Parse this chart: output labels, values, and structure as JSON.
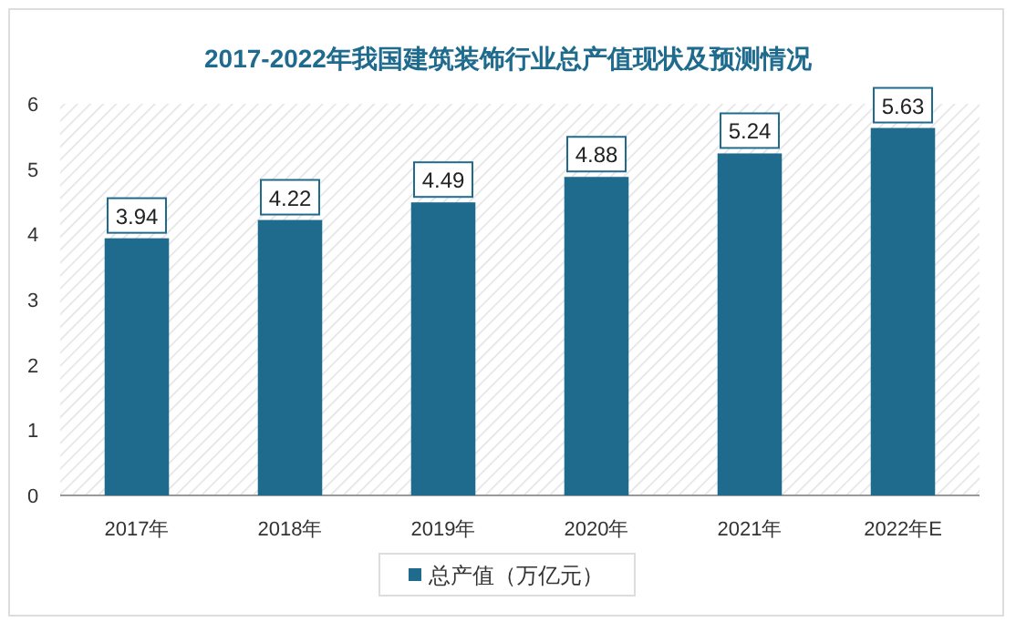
{
  "chart_data": {
    "type": "bar",
    "title": "2017-2022年我国建筑装饰行业总产值现状及预测情况",
    "categories": [
      "2017年",
      "2018年",
      "2019年",
      "2020年",
      "2021年",
      "2022年E"
    ],
    "series": [
      {
        "name": "总产值（万亿元）",
        "color": "#1f6b8e",
        "values": [
          3.94,
          4.22,
          4.49,
          4.88,
          5.24,
          5.63
        ]
      }
    ],
    "ylim": [
      0,
      6
    ],
    "yticks": [
      0,
      1,
      2,
      3,
      4,
      5,
      6
    ],
    "data_labels": true,
    "legend": "bottom",
    "grid": false
  }
}
